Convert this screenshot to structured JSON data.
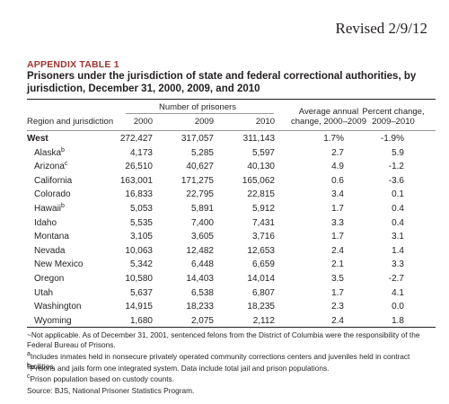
{
  "revised": "Revised 2/9/12",
  "label": "APPENDIX TABLE 1",
  "title": "Prisoners under the jurisdiction of state and federal correctional authorities, by jurisdiction, December 31, 2000, 2009, and 2010",
  "header": {
    "group": "Number of prisoners",
    "region": "Region and jurisdiction",
    "years": [
      "2000",
      "2009",
      "2010"
    ],
    "avg_change": [
      "Average annual",
      "change, 2000–2009"
    ],
    "pct_change": [
      "Percent change,",
      "2009–2010"
    ]
  },
  "rows": [
    {
      "name": "West",
      "cells": [
        "272,427",
        "317,057",
        "311,143",
        "1.7%",
        "-1.9%"
      ]
    },
    {
      "name": "Alaska",
      "note": "b",
      "cells": [
        "4,173",
        "5,285",
        "5,597",
        "2.7",
        "5.9"
      ]
    },
    {
      "name": "Arizona",
      "note": "c",
      "cells": [
        "26,510",
        "40,627",
        "40,130",
        "4.9",
        "-1.2"
      ]
    },
    {
      "name": "California",
      "cells": [
        "163,001",
        "171,275",
        "165,062",
        "0.6",
        "-3.6"
      ]
    },
    {
      "name": "Colorado",
      "cells": [
        "16,833",
        "22,795",
        "22,815",
        "3.4",
        "0.1"
      ]
    },
    {
      "name": "Hawaii",
      "note": "b",
      "cells": [
        "5,053",
        "5,891",
        "5,912",
        "1.7",
        "0.4"
      ]
    },
    {
      "name": "Idaho",
      "cells": [
        "5,535",
        "7,400",
        "7,431",
        "3.3",
        "0.4"
      ]
    },
    {
      "name": "Montana",
      "cells": [
        "3,105",
        "3,605",
        "3,716",
        "1.7",
        "3.1"
      ]
    },
    {
      "name": "Nevada",
      "cells": [
        "10,063",
        "12,482",
        "12,653",
        "2.4",
        "1.4"
      ]
    },
    {
      "name": "New Mexico",
      "cells": [
        "5,342",
        "6,448",
        "6,659",
        "2.1",
        "3.3"
      ]
    },
    {
      "name": "Oregon",
      "cells": [
        "10,580",
        "14,403",
        "14,014",
        "3.5",
        "-2.7"
      ]
    },
    {
      "name": "Utah",
      "cells": [
        "5,637",
        "6,538",
        "6,807",
        "1.7",
        "4.1"
      ]
    },
    {
      "name": "Washington",
      "cells": [
        "14,915",
        "18,233",
        "18,235",
        "2.3",
        "0.0"
      ]
    },
    {
      "name": "Wyoming",
      "cells": [
        "1,680",
        "2,075",
        "2,112",
        "2.4",
        "1.8"
      ]
    }
  ],
  "footnotes": [
    {
      "text": "~Not applicable.  As of December 31, 2001, sentenced felons from the District of Columbia were the responsibility of the Federal Bureau of Prisons."
    },
    {
      "mark": "a",
      "text": "Includes inmates held in nonsecure privately operated community corrections centers and juveniles held in contract facilities."
    },
    {
      "mark": "b",
      "text": "Prisons and jails form one integrated system. Data include total jail and prison populations."
    },
    {
      "mark": "c",
      "text": "Prison population based on custody counts."
    }
  ],
  "source": "Source: BJS, National Prisoner Statistics Program."
}
